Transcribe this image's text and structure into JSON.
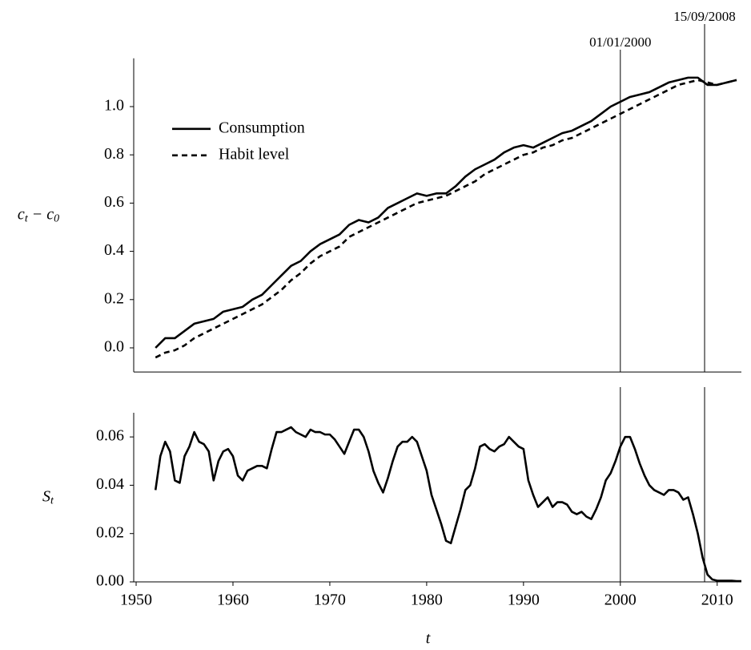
{
  "chart_data": [
    {
      "type": "line",
      "ylabel": [
        "c",
        "t",
        " − c",
        "0"
      ],
      "x": [
        1952,
        1953,
        1954,
        1955,
        1956,
        1957,
        1958,
        1959,
        1960,
        1961,
        1962,
        1963,
        1964,
        1965,
        1966,
        1967,
        1968,
        1969,
        1970,
        1971,
        1972,
        1973,
        1974,
        1975,
        1976,
        1977,
        1978,
        1979,
        1980,
        1981,
        1982,
        1983,
        1984,
        1985,
        1986,
        1987,
        1988,
        1989,
        1990,
        1991,
        1992,
        1993,
        1994,
        1995,
        1996,
        1997,
        1998,
        1999,
        2000,
        2001,
        2002,
        2003,
        2004,
        2005,
        2006,
        2007,
        2008,
        2009,
        2010,
        2011,
        2012
      ],
      "series": [
        {
          "name": "Consumption",
          "color": "#000000",
          "linestyle": "solid",
          "values": [
            0.0,
            0.04,
            0.04,
            0.07,
            0.1,
            0.11,
            0.12,
            0.15,
            0.16,
            0.17,
            0.2,
            0.22,
            0.26,
            0.3,
            0.34,
            0.36,
            0.4,
            0.43,
            0.45,
            0.47,
            0.51,
            0.53,
            0.52,
            0.54,
            0.58,
            0.6,
            0.62,
            0.64,
            0.63,
            0.64,
            0.64,
            0.67,
            0.71,
            0.74,
            0.76,
            0.78,
            0.81,
            0.83,
            0.84,
            0.83,
            0.85,
            0.87,
            0.89,
            0.9,
            0.92,
            0.94,
            0.97,
            1.0,
            1.02,
            1.04,
            1.05,
            1.06,
            1.08,
            1.1,
            1.11,
            1.12,
            1.12,
            1.09,
            1.09,
            1.1,
            1.11
          ]
        },
        {
          "name": "Habit level",
          "color": "#000000",
          "linestyle": "dashed",
          "values": [
            -0.04,
            -0.02,
            -0.01,
            0.01,
            0.04,
            0.06,
            0.08,
            0.1,
            0.12,
            0.14,
            0.16,
            0.18,
            0.21,
            0.24,
            0.28,
            0.31,
            0.35,
            0.38,
            0.4,
            0.42,
            0.46,
            0.48,
            0.5,
            0.52,
            0.54,
            0.56,
            0.58,
            0.6,
            0.61,
            0.62,
            0.63,
            0.65,
            0.67,
            0.69,
            0.72,
            0.74,
            0.76,
            0.78,
            0.8,
            0.81,
            0.83,
            0.84,
            0.86,
            0.87,
            0.89,
            0.91,
            0.93,
            0.95,
            0.97,
            0.99,
            1.01,
            1.03,
            1.05,
            1.07,
            1.09,
            1.1,
            1.11,
            1.1,
            1.09,
            1.1,
            1.11
          ]
        }
      ],
      "xlim": [
        1949.75,
        2012.5
      ],
      "ylim": [
        -0.1,
        1.2
      ],
      "yticks": [
        {
          "value": 0,
          "label": "0.0"
        },
        0.2,
        0.4,
        0.6,
        0.8,
        {
          "value": 1,
          "label": "1.0"
        }
      ],
      "legend": "upper left",
      "vlines": [
        {
          "x": 2000.0,
          "label": "01/01/2000"
        },
        {
          "x": 2008.7,
          "label": "15/09/2008"
        }
      ]
    },
    {
      "type": "line",
      "ylabel": [
        "S",
        "t"
      ],
      "xlabel": "t",
      "x": [
        1952,
        1952.5,
        1953,
        1953.5,
        1954,
        1954.5,
        1955,
        1955.5,
        1956,
        1956.5,
        1957,
        1957.5,
        1958,
        1958.5,
        1959,
        1959.5,
        1960,
        1960.5,
        1961,
        1961.5,
        1962,
        1962.5,
        1963,
        1963.5,
        1964,
        1964.5,
        1965,
        1965.5,
        1966,
        1966.5,
        1967,
        1967.5,
        1968,
        1968.5,
        1969,
        1969.5,
        1970,
        1970.5,
        1971,
        1971.5,
        1972,
        1972.5,
        1973,
        1973.5,
        1974,
        1974.5,
        1975,
        1975.5,
        1976,
        1976.5,
        1977,
        1977.5,
        1978,
        1978.5,
        1979,
        1979.5,
        1980,
        1980.5,
        1981,
        1981.5,
        1982,
        1982.5,
        1983,
        1983.5,
        1984,
        1984.5,
        1985,
        1985.5,
        1986,
        1986.5,
        1987,
        1987.5,
        1988,
        1988.5,
        1989,
        1989.5,
        1990,
        1990.5,
        1991,
        1991.5,
        1992,
        1992.5,
        1993,
        1993.5,
        1994,
        1994.5,
        1995,
        1995.5,
        1996,
        1996.5,
        1997,
        1997.5,
        1998,
        1998.5,
        1999,
        1999.5,
        2000,
        2000.5,
        2001,
        2001.5,
        2002,
        2002.5,
        2003,
        2003.5,
        2004,
        2004.5,
        2005,
        2005.5,
        2006,
        2006.5,
        2007,
        2007.5,
        2008,
        2008.5,
        2009,
        2009.5,
        2010,
        2010.5,
        2011,
        2011.5,
        2012,
        2012.5
      ],
      "values": [
        0.038,
        0.052,
        0.058,
        0.054,
        0.042,
        0.041,
        0.052,
        0.056,
        0.062,
        0.058,
        0.057,
        0.054,
        0.042,
        0.05,
        0.054,
        0.055,
        0.052,
        0.044,
        0.042,
        0.046,
        0.047,
        0.048,
        0.048,
        0.047,
        0.055,
        0.062,
        0.062,
        0.063,
        0.064,
        0.062,
        0.061,
        0.06,
        0.063,
        0.062,
        0.062,
        0.061,
        0.061,
        0.059,
        0.056,
        0.053,
        0.058,
        0.063,
        0.063,
        0.06,
        0.054,
        0.046,
        0.041,
        0.037,
        0.043,
        0.05,
        0.056,
        0.058,
        0.058,
        0.06,
        0.058,
        0.052,
        0.046,
        0.036,
        0.03,
        0.024,
        0.017,
        0.016,
        0.023,
        0.03,
        0.038,
        0.04,
        0.047,
        0.056,
        0.057,
        0.055,
        0.054,
        0.056,
        0.057,
        0.06,
        0.058,
        0.056,
        0.055,
        0.042,
        0.036,
        0.031,
        0.033,
        0.035,
        0.031,
        0.033,
        0.033,
        0.032,
        0.029,
        0.028,
        0.029,
        0.027,
        0.026,
        0.03,
        0.035,
        0.042,
        0.045,
        0.05,
        0.056,
        0.06,
        0.06,
        0.055,
        0.049,
        0.044,
        0.04,
        0.038,
        0.037,
        0.036,
        0.038,
        0.038,
        0.037,
        0.034,
        0.035,
        0.028,
        0.02,
        0.01,
        0.003,
        0.001,
        0.0005,
        0.0005,
        0.0005,
        0.0005,
        0.0003,
        0.0003
      ],
      "color": "#000000",
      "xlim": [
        1949.75,
        2012.5
      ],
      "ylim": [
        0,
        0.07
      ],
      "xticks": [
        1950,
        1960,
        1970,
        1980,
        1990,
        2000,
        2010
      ],
      "yticks": [
        {
          "value": 0,
          "label": "0.00"
        },
        0.02,
        0.04,
        0.06
      ],
      "vlines": [
        {
          "x": 2000.0
        },
        {
          "x": 2008.7
        }
      ]
    }
  ]
}
